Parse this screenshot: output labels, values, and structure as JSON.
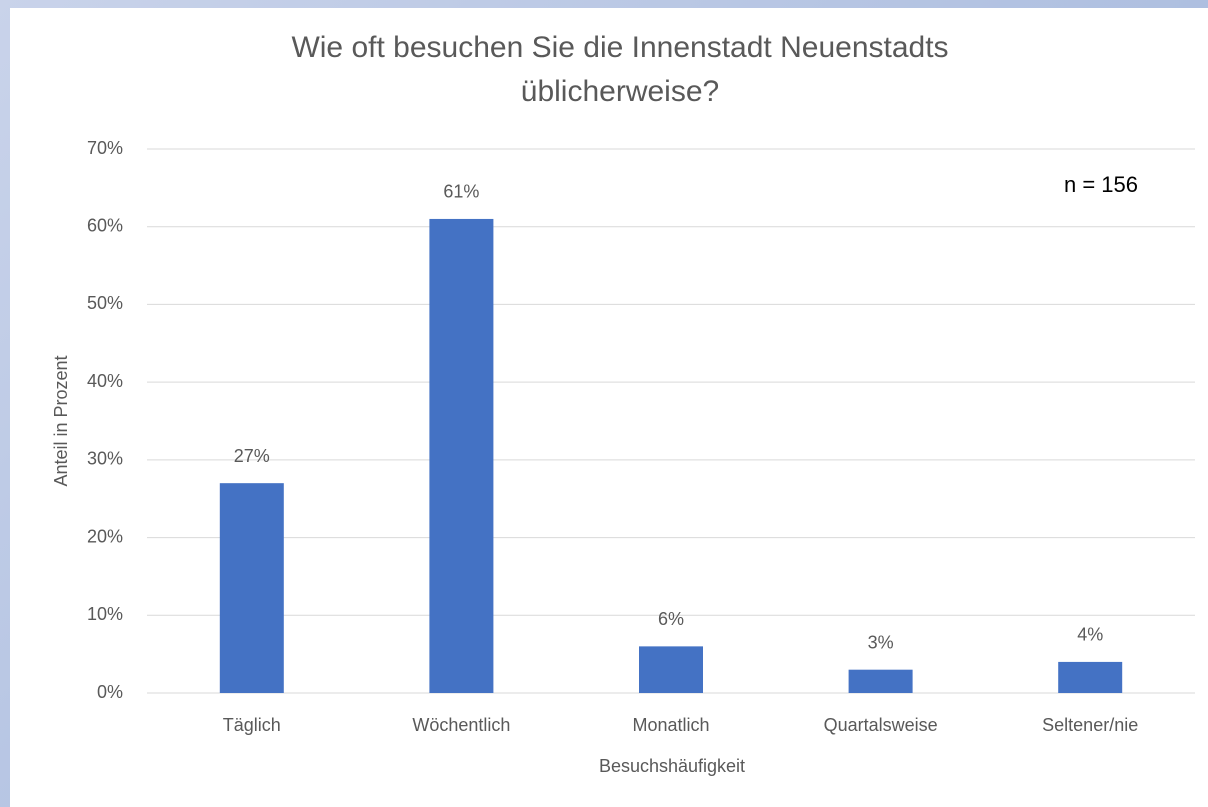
{
  "chart_data": {
    "type": "bar",
    "title": "Wie oft besuchen Sie die Innenstadt Neuenstadts üblicherweise?",
    "annotation": "n = 156",
    "x_label": "Besuchshäufigkeit",
    "y_label": "Anteil in Prozent",
    "categories": [
      "Täglich",
      "Wöchentlich",
      "Monatlich",
      "Quartalsweise",
      "Seltener/nie"
    ],
    "values": [
      27,
      61,
      6,
      3,
      4
    ],
    "value_labels": [
      "27%",
      "61%",
      "6%",
      "3%",
      "4%"
    ],
    "color": "#4472c4",
    "ylim": [
      0,
      70
    ],
    "yticks": [
      {
        "value": 0,
        "label": "0%"
      },
      {
        "value": 10,
        "label": "10%"
      },
      {
        "value": 20,
        "label": "20%"
      },
      {
        "value": 30,
        "label": "30%"
      },
      {
        "value": 40,
        "label": "40%"
      },
      {
        "value": 50,
        "label": "50%"
      },
      {
        "value": 60,
        "label": "60%"
      },
      {
        "value": 70,
        "label": "70%"
      }
    ],
    "grid": true
  }
}
